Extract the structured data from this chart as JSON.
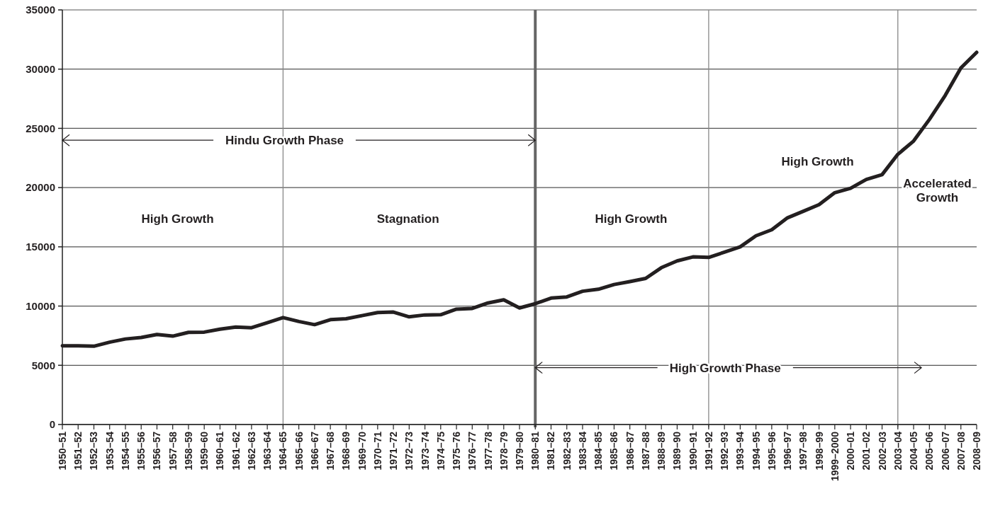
{
  "chart_data": {
    "type": "line",
    "categories": [
      "1950–51",
      "1951–52",
      "1952–53",
      "1953–54",
      "1954–55",
      "1955–56",
      "1956–57",
      "1957–58",
      "1958–59",
      "1959–60",
      "1960–61",
      "1961–62",
      "1962–63",
      "1963–64",
      "1964–65",
      "1965–66",
      "1966–67",
      "1967–68",
      "1968–69",
      "1969–70",
      "1970–71",
      "1971–72",
      "1972–73",
      "1973–74",
      "1974–75",
      "1975–76",
      "1976–77",
      "1977–78",
      "1978–79",
      "1979–80",
      "1980–81",
      "1981–82",
      "1982–83",
      "1983–84",
      "1984–85",
      "1985–86",
      "1986–87",
      "1987–88",
      "1988–89",
      "1989–90",
      "1990–91",
      "1991–92",
      "1992–93",
      "1993–94",
      "1994–95",
      "1995–96",
      "1996–97",
      "1997–98",
      "1998–99",
      "1999–2000",
      "2000–01",
      "2001–02",
      "2002–03",
      "2003–04",
      "2004–05",
      "2005–06",
      "2006–07",
      "2007–08",
      "2008–09"
    ],
    "series": [
      {
        "color": "#231f20",
        "values": [
          6650,
          6640,
          6610,
          6950,
          7220,
          7350,
          7600,
          7460,
          7780,
          7800,
          8050,
          8230,
          8170,
          8600,
          9030,
          8700,
          8430,
          8850,
          8930,
          9190,
          9450,
          9490,
          9090,
          9250,
          9270,
          9740,
          9800,
          10260,
          10530,
          9840,
          10200,
          10670,
          10770,
          11250,
          11420,
          11820,
          12060,
          12330,
          13240,
          13810,
          14150,
          14110,
          14550,
          15000,
          15930,
          16440,
          17450,
          18000,
          18560,
          19570,
          19940,
          20690,
          21090,
          22810,
          23930,
          25750,
          27770,
          30100,
          31420
        ]
      }
    ],
    "ylim": [
      0,
      35000
    ],
    "yticks": [
      0,
      5000,
      10000,
      15000,
      20000,
      25000,
      30000,
      35000
    ],
    "grid": "y",
    "marker": "none",
    "line_style": "solid",
    "ref_lines": [
      {
        "axis": "x",
        "value": "1964–65",
        "color": "#888888"
      },
      {
        "axis": "x",
        "value": "1980–81",
        "color": "#666666"
      },
      {
        "axis": "x",
        "value": "1991–92",
        "color": "#888888"
      },
      {
        "axis": "x",
        "value": "2003–04",
        "color": "#888888"
      }
    ],
    "annotations": [
      {
        "text": "Hindu Growth Phase",
        "x": "1980–81",
        "y": 24000
      },
      {
        "text": "High Growth Phase",
        "x": "1980–81",
        "y": 4800
      },
      "High Growth",
      "Stagnation",
      "High Growth",
      "High Growth",
      "Accelerated\nGrowth"
    ]
  }
}
